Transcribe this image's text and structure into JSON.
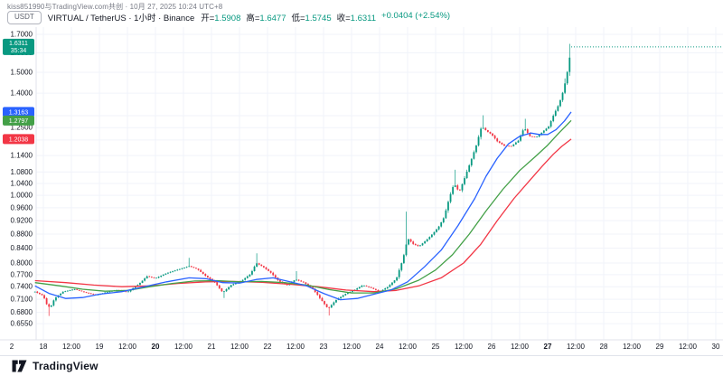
{
  "watermark": "kiss851990与TradingView.com共创 · 10月 27, 2025 10:24 UTC+8",
  "header": {
    "currency_button": "USDT",
    "symbol_line": "VIRTUAL / TetherUS · 1小时 · Binance",
    "ohlc": {
      "o_label": "开=",
      "o": "1.5908",
      "h_label": "高=",
      "h": "1.6477",
      "l_label": "低=",
      "l": "1.5745",
      "c_label": "收=",
      "c": "1.6311",
      "change": "+0.0404 (+2.54%)"
    }
  },
  "footer": {
    "brand": "TradingView"
  },
  "colors": {
    "up": "#089981",
    "down": "#F23645",
    "ma_fast": "#2962FF",
    "ma_mid": "#43A047",
    "ma_slow": "#F23645",
    "grid": "#F0F3FA",
    "border": "#E0E3EB",
    "text": "#131722",
    "subtext": "#787B86"
  },
  "chart_data": {
    "type": "candlestick",
    "title": "VIRTUAL / TetherUS · 1小时 · Binance",
    "scale": "log",
    "legend_position": "left-axis",
    "grid": true,
    "start_day": 17.85,
    "end_day": 27.42,
    "candle_step_days": 0.0416667,
    "seed": 7,
    "x_tick_days_start": 18,
    "x_tick_days_end": 30,
    "bold_x_ticks": [
      20,
      27
    ],
    "half_tick_label": "12:00",
    "clipped_left_tick": {
      "label": "2",
      "x": 13
    },
    "y_ticks": [
      1.7,
      1.6,
      1.5,
      1.4,
      1.3,
      1.25,
      1.2,
      1.14,
      1.08,
      1.04,
      1.0,
      0.96,
      0.92,
      0.88,
      0.84,
      0.8,
      0.77,
      0.74,
      0.71,
      0.68,
      0.655
    ],
    "last": {
      "price": 1.6311,
      "label": "1.6311",
      "countdown": "35:34"
    },
    "close_keypoints": [
      [
        17.85,
        0.728
      ],
      [
        18.0,
        0.718
      ],
      [
        18.06,
        0.698
      ],
      [
        18.12,
        0.69
      ],
      [
        18.2,
        0.712
      ],
      [
        18.35,
        0.728
      ],
      [
        18.55,
        0.734
      ],
      [
        18.75,
        0.726
      ],
      [
        18.95,
        0.72
      ],
      [
        19.1,
        0.726
      ],
      [
        19.3,
        0.732
      ],
      [
        19.5,
        0.727
      ],
      [
        19.7,
        0.746
      ],
      [
        19.85,
        0.766
      ],
      [
        20.0,
        0.761
      ],
      [
        20.2,
        0.774
      ],
      [
        20.4,
        0.783
      ],
      [
        20.6,
        0.792
      ],
      [
        20.75,
        0.784
      ],
      [
        20.9,
        0.766
      ],
      [
        21.05,
        0.752
      ],
      [
        21.2,
        0.726
      ],
      [
        21.35,
        0.744
      ],
      [
        21.55,
        0.756
      ],
      [
        21.7,
        0.772
      ],
      [
        21.8,
        0.8
      ],
      [
        21.92,
        0.79
      ],
      [
        22.05,
        0.776
      ],
      [
        22.2,
        0.754
      ],
      [
        22.35,
        0.744
      ],
      [
        22.5,
        0.758
      ],
      [
        22.65,
        0.75
      ],
      [
        22.8,
        0.736
      ],
      [
        22.95,
        0.71
      ],
      [
        23.08,
        0.688
      ],
      [
        23.22,
        0.708
      ],
      [
        23.38,
        0.722
      ],
      [
        23.55,
        0.732
      ],
      [
        23.7,
        0.744
      ],
      [
        23.85,
        0.737
      ],
      [
        24.0,
        0.728
      ],
      [
        24.15,
        0.74
      ],
      [
        24.3,
        0.76
      ],
      [
        24.42,
        0.812
      ],
      [
        24.5,
        0.868
      ],
      [
        24.6,
        0.852
      ],
      [
        24.7,
        0.845
      ],
      [
        24.8,
        0.858
      ],
      [
        24.92,
        0.876
      ],
      [
        25.05,
        0.9
      ],
      [
        25.15,
        0.93
      ],
      [
        25.25,
        0.995
      ],
      [
        25.33,
        1.04
      ],
      [
        25.42,
        1.01
      ],
      [
        25.52,
        1.06
      ],
      [
        25.62,
        1.115
      ],
      [
        25.72,
        1.175
      ],
      [
        25.82,
        1.255
      ],
      [
        25.9,
        1.238
      ],
      [
        26.0,
        1.222
      ],
      [
        26.1,
        1.195
      ],
      [
        26.22,
        1.178
      ],
      [
        26.35,
        1.176
      ],
      [
        26.48,
        1.198
      ],
      [
        26.58,
        1.25
      ],
      [
        26.68,
        1.215
      ],
      [
        26.8,
        1.212
      ],
      [
        26.92,
        1.235
      ],
      [
        27.02,
        1.255
      ],
      [
        27.08,
        1.29
      ],
      [
        27.14,
        1.32
      ],
      [
        27.2,
        1.35
      ],
      [
        27.26,
        1.395
      ],
      [
        27.31,
        1.448
      ],
      [
        27.36,
        1.515
      ],
      [
        27.4,
        1.59
      ],
      [
        27.42,
        1.6311
      ]
    ],
    "spikes": [
      {
        "d": 18.09,
        "low": 0.672
      },
      {
        "d": 20.6,
        "high": 0.814
      },
      {
        "d": 21.22,
        "low": 0.713
      },
      {
        "d": 21.82,
        "high": 0.826
      },
      {
        "d": 22.52,
        "high": 0.779
      },
      {
        "d": 23.1,
        "low": 0.673
      },
      {
        "d": 24.46,
        "high": 0.948
      },
      {
        "d": 25.33,
        "high": 1.088
      },
      {
        "d": 25.84,
        "high": 1.302
      },
      {
        "d": 26.6,
        "high": 1.287
      },
      {
        "d": 27.31,
        "high": 1.47
      },
      {
        "d": 27.42,
        "high": 1.6477
      }
    ],
    "ma_lines": [
      {
        "name": "ma-fast",
        "tag": "1.3163",
        "value": 1.3163,
        "color_key": "ma_fast",
        "points": [
          [
            17.85,
            0.742
          ],
          [
            18.1,
            0.724
          ],
          [
            18.4,
            0.712
          ],
          [
            18.7,
            0.714
          ],
          [
            19.0,
            0.722
          ],
          [
            19.4,
            0.728
          ],
          [
            19.8,
            0.74
          ],
          [
            20.2,
            0.752
          ],
          [
            20.6,
            0.762
          ],
          [
            20.9,
            0.76
          ],
          [
            21.2,
            0.75
          ],
          [
            21.5,
            0.749
          ],
          [
            21.8,
            0.758
          ],
          [
            22.1,
            0.762
          ],
          [
            22.4,
            0.752
          ],
          [
            22.7,
            0.742
          ],
          [
            23.0,
            0.724
          ],
          [
            23.3,
            0.709
          ],
          [
            23.6,
            0.712
          ],
          [
            23.9,
            0.722
          ],
          [
            24.2,
            0.732
          ],
          [
            24.5,
            0.752
          ],
          [
            24.8,
            0.79
          ],
          [
            25.1,
            0.835
          ],
          [
            25.4,
            0.905
          ],
          [
            25.7,
            0.99
          ],
          [
            25.9,
            1.065
          ],
          [
            26.1,
            1.13
          ],
          [
            26.3,
            1.185
          ],
          [
            26.5,
            1.215
          ],
          [
            26.7,
            1.228
          ],
          [
            26.85,
            1.222
          ],
          [
            27.0,
            1.222
          ],
          [
            27.15,
            1.242
          ],
          [
            27.3,
            1.278
          ],
          [
            27.42,
            1.3163
          ]
        ]
      },
      {
        "name": "ma-mid",
        "tag": "1.2797",
        "value": 1.2797,
        "color_key": "ma_mid",
        "points": [
          [
            17.85,
            0.75
          ],
          [
            18.3,
            0.742
          ],
          [
            18.7,
            0.734
          ],
          [
            19.1,
            0.729
          ],
          [
            19.5,
            0.731
          ],
          [
            19.9,
            0.74
          ],
          [
            20.3,
            0.748
          ],
          [
            20.7,
            0.754
          ],
          [
            21.1,
            0.755
          ],
          [
            21.5,
            0.752
          ],
          [
            21.9,
            0.753
          ],
          [
            22.3,
            0.75
          ],
          [
            22.7,
            0.744
          ],
          [
            23.1,
            0.733
          ],
          [
            23.5,
            0.725
          ],
          [
            23.9,
            0.725
          ],
          [
            24.3,
            0.735
          ],
          [
            24.7,
            0.756
          ],
          [
            25.0,
            0.782
          ],
          [
            25.3,
            0.822
          ],
          [
            25.6,
            0.88
          ],
          [
            25.9,
            0.95
          ],
          [
            26.2,
            1.02
          ],
          [
            26.5,
            1.085
          ],
          [
            26.8,
            1.14
          ],
          [
            27.0,
            1.18
          ],
          [
            27.2,
            1.228
          ],
          [
            27.42,
            1.2797
          ]
        ]
      },
      {
        "name": "ma-slow",
        "tag": "1.2038",
        "value": 1.2038,
        "color_key": "ma_slow",
        "points": [
          [
            17.85,
            0.755
          ],
          [
            18.4,
            0.75
          ],
          [
            18.9,
            0.744
          ],
          [
            19.4,
            0.74
          ],
          [
            19.9,
            0.742
          ],
          [
            20.4,
            0.748
          ],
          [
            20.9,
            0.752
          ],
          [
            21.4,
            0.753
          ],
          [
            21.9,
            0.751
          ],
          [
            22.4,
            0.746
          ],
          [
            22.9,
            0.74
          ],
          [
            23.4,
            0.732
          ],
          [
            23.9,
            0.728
          ],
          [
            24.3,
            0.731
          ],
          [
            24.7,
            0.742
          ],
          [
            25.1,
            0.762
          ],
          [
            25.5,
            0.8
          ],
          [
            25.8,
            0.85
          ],
          [
            26.1,
            0.92
          ],
          [
            26.4,
            0.99
          ],
          [
            26.7,
            1.055
          ],
          [
            26.9,
            1.1
          ],
          [
            27.1,
            1.145
          ],
          [
            27.25,
            1.175
          ],
          [
            27.42,
            1.2038
          ]
        ]
      }
    ]
  }
}
